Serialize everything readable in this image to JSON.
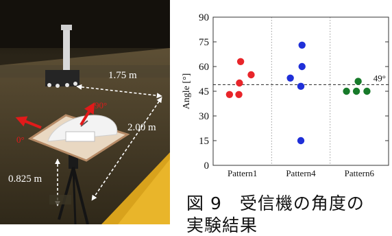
{
  "photo": {
    "distance_top": "1.75 m",
    "distance_side": "2.00 m",
    "height_label": "0.825 m",
    "angle_90": "90°",
    "angle_0": "0°"
  },
  "chart_data": {
    "type": "scatter",
    "categories": [
      "Pattern1",
      "Pattern4",
      "Pattern6"
    ],
    "ylabel": "Angle [°]",
    "ylim": [
      0,
      90
    ],
    "yticks": [
      0,
      15,
      30,
      45,
      60,
      75,
      90
    ],
    "grid": "vertical dotted separators",
    "reference_line": {
      "value": 49,
      "label": "49°",
      "style": "dashed"
    },
    "series": [
      {
        "category": "Pattern1",
        "color": "#e8252a",
        "points": [
          {
            "x": -0.22,
            "y": 43
          },
          {
            "x": -0.06,
            "y": 43
          },
          {
            "x": -0.05,
            "y": 50
          },
          {
            "x": -0.03,
            "y": 63
          },
          {
            "x": 0.15,
            "y": 55
          }
        ]
      },
      {
        "category": "Pattern4",
        "color": "#1f2fd8",
        "points": [
          {
            "x": -0.18,
            "y": 53
          },
          {
            "x": 0.02,
            "y": 73
          },
          {
            "x": 0.02,
            "y": 60
          },
          {
            "x": 0.0,
            "y": 48
          },
          {
            "x": 0.0,
            "y": 15
          }
        ]
      },
      {
        "category": "Pattern6",
        "color": "#177a2a",
        "points": [
          {
            "x": -0.22,
            "y": 45
          },
          {
            "x": -0.05,
            "y": 45
          },
          {
            "x": -0.02,
            "y": 51
          },
          {
            "x": 0.13,
            "y": 45
          }
        ]
      }
    ]
  },
  "caption": {
    "line1": "図 9　受信機の角度の",
    "line2": "実験結果"
  }
}
